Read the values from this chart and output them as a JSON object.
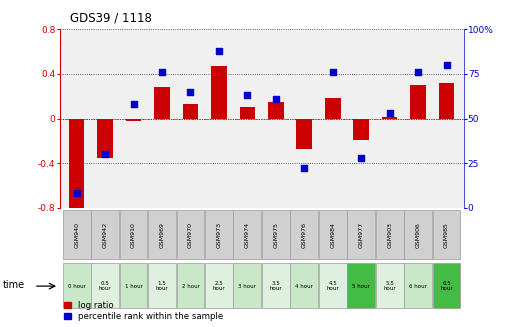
{
  "title": "GDS39 / 1118",
  "samples": [
    "GSM940",
    "GSM942",
    "GSM910",
    "GSM969",
    "GSM970",
    "GSM973",
    "GSM974",
    "GSM975",
    "GSM976",
    "GSM984",
    "GSM977",
    "GSM903",
    "GSM906",
    "GSM985"
  ],
  "time_labels": [
    "0 hour",
    "0.5\nhour",
    "1 hour",
    "1.5\nhour",
    "2 hour",
    "2.5\nhour",
    "3 hour",
    "3.5\nhour",
    "4 hour",
    "4.5\nhour",
    "5 hour",
    "5.5\nhour",
    "6 hour",
    "6.5\nhour"
  ],
  "time_colors": [
    "#c8e8c8",
    "#e0f0e0",
    "#c8e8c8",
    "#e0f0e0",
    "#c8e8c8",
    "#e0f0e0",
    "#c8e8c8",
    "#e0f0e0",
    "#c8e8c8",
    "#e0f0e0",
    "#44bb44",
    "#e0f0e0",
    "#c8e8c8",
    "#44bb44"
  ],
  "log_ratio": [
    -0.85,
    -0.35,
    -0.02,
    0.28,
    0.13,
    0.47,
    0.1,
    0.15,
    -0.27,
    0.18,
    -0.19,
    0.01,
    0.3,
    0.32
  ],
  "percentile": [
    8,
    30,
    58,
    76,
    65,
    88,
    63,
    61,
    22,
    76,
    28,
    53,
    76,
    80
  ],
  "ylim_left": [
    -0.8,
    0.8
  ],
  "ylim_right": [
    0,
    100
  ],
  "bar_color": "#cc0000",
  "dot_color": "#0000cc",
  "bg_color": "#ffffff",
  "plot_bg": "#f0f0f0",
  "zero_line_color": "#cc0000",
  "ylabel_left_color": "#cc0000",
  "ylabel_right_color": "#0000cc",
  "gsm_cell_color": "#d0d0d0",
  "border_color": "#999999"
}
